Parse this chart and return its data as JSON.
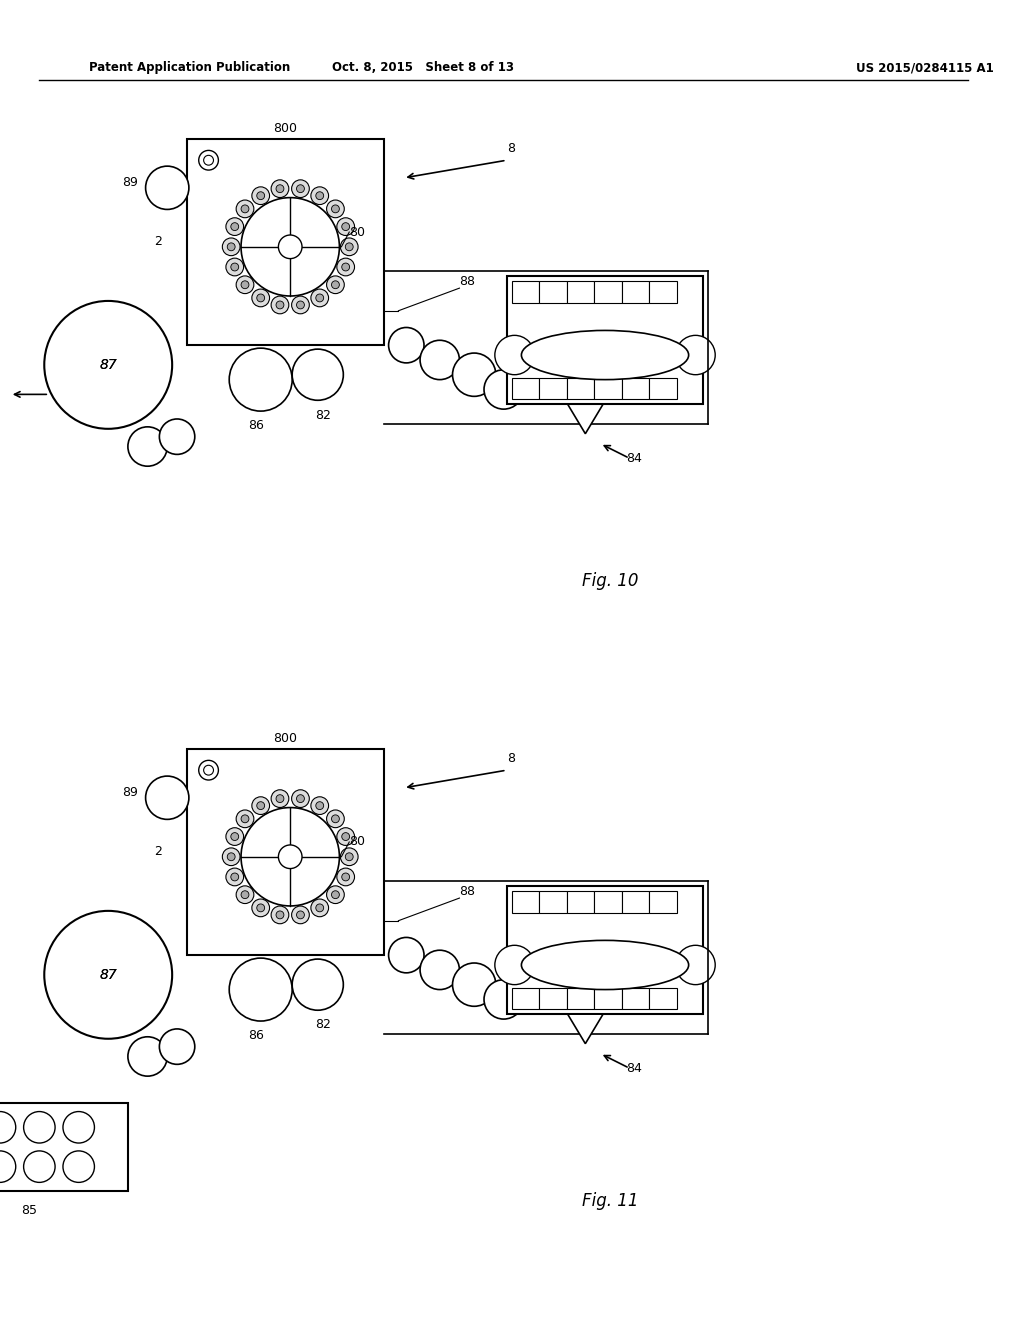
{
  "header_left": "Patent Application Publication",
  "header_mid": "Oct. 8, 2015   Sheet 8 of 13",
  "header_right": "US 2015/0284115 A1",
  "fig10_label": "Fig. 10",
  "fig11_label": "Fig. 11",
  "bg_color": "#ffffff",
  "line_color": "#000000",
  "text_color": "#000000"
}
